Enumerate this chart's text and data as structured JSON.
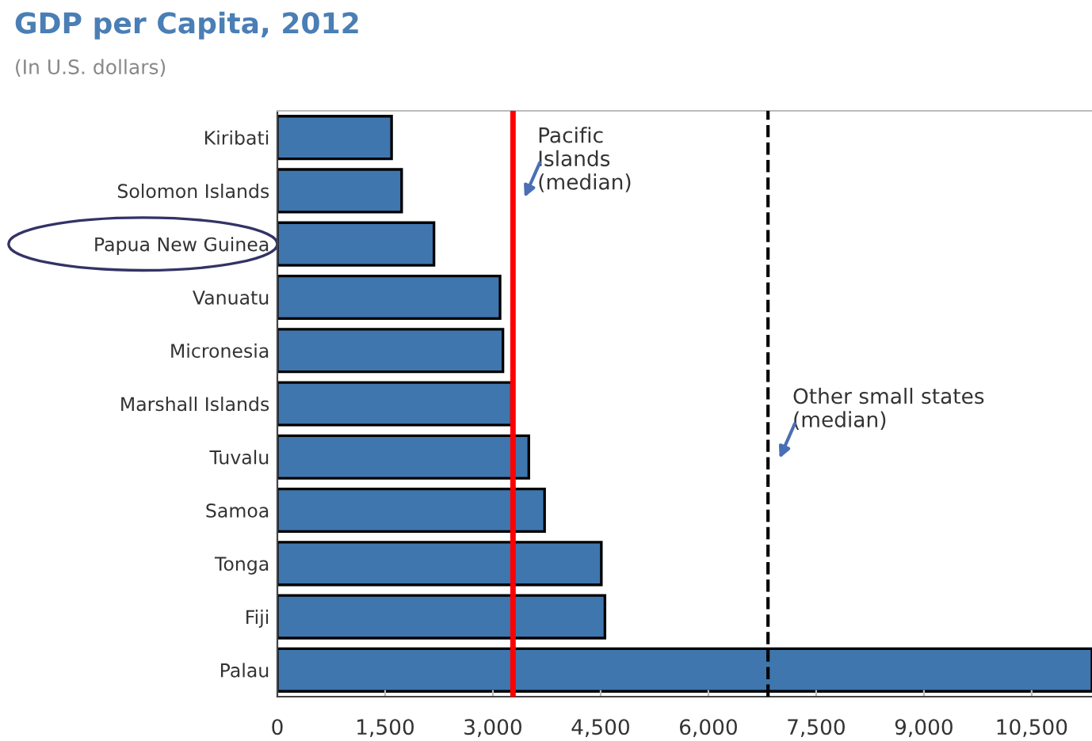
{
  "chart_data": {
    "type": "bar",
    "orientation": "horizontal",
    "title": "GDP per Capita, 2012",
    "subtitle": "(In U.S. dollars)",
    "categories": [
      "Kiribati",
      "Solomon Islands",
      "Papua New Guinea",
      "Vanuatu",
      "Micronesia",
      "Marshall Islands",
      "Tuvalu",
      "Samoa",
      "Tonga",
      "Fiji",
      "Palau"
    ],
    "values": [
      1590,
      1730,
      2180,
      3100,
      3140,
      3260,
      3500,
      3720,
      4510,
      4560,
      11340
    ],
    "color": "#3f76ad",
    "xlim": [
      0,
      11340
    ],
    "xticks": [
      0,
      {
        "value": 1500,
        "label": "1,500"
      },
      {
        "value": 3000,
        "label": "3,000"
      },
      {
        "value": 4500,
        "label": "4,500"
      },
      {
        "value": 6000,
        "label": "6,000"
      },
      {
        "value": 7500,
        "label": "7,500"
      },
      {
        "value": 9000,
        "label": "9,000"
      },
      {
        "value": 10500,
        "label": "10,500"
      }
    ],
    "ref_lines": [
      {
        "axis": "x",
        "value": 3280,
        "label": "Pacific\nIslands\n(median)",
        "color": "#ff0000",
        "line_style": "solid"
      },
      {
        "axis": "x",
        "value": 6830,
        "label": "Other small states\n(median)",
        "color": "#000000",
        "line_style": "dashed"
      }
    ],
    "grid": false,
    "legend": false
  }
}
